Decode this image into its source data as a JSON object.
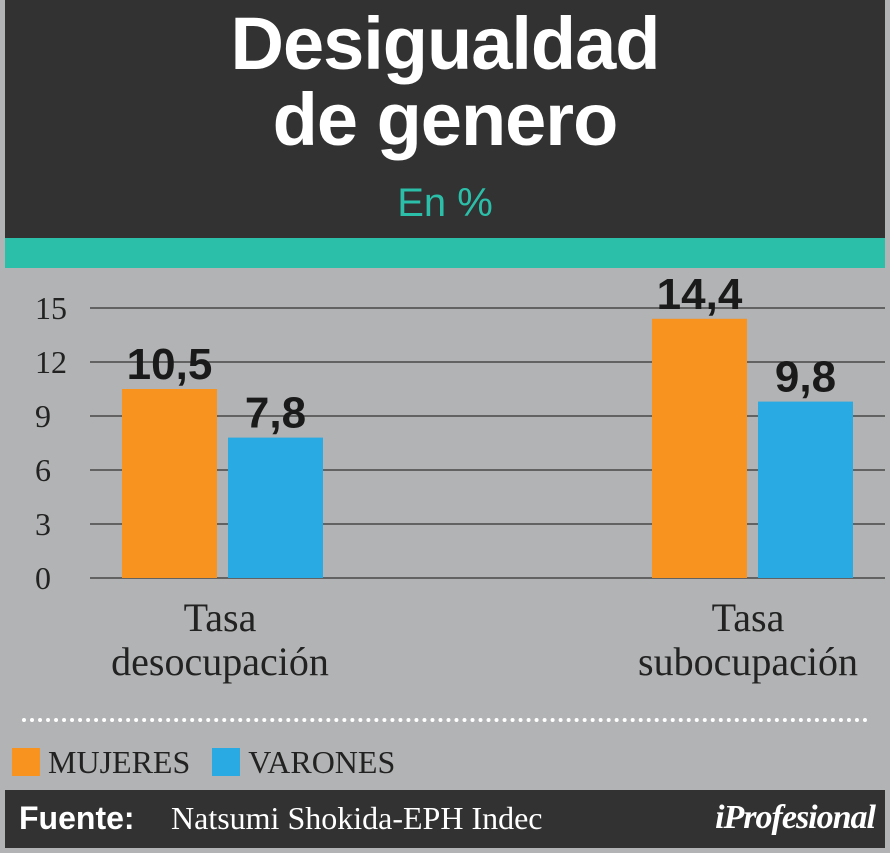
{
  "title_line1": "Desigualdad",
  "title_line2": "de genero",
  "subtitle": "En %",
  "colors": {
    "header_bg": "#323232",
    "accent": "#2bbfa9",
    "plot_bg": "#b2b3b4",
    "mujeres": "#f7931e",
    "varones": "#29aae2"
  },
  "chart_data": {
    "type": "bar",
    "categories": [
      "Tasa\ndesocupación",
      "Tasa\nsubocupación"
    ],
    "series": [
      {
        "name": "MUJERES",
        "values": [
          10.5,
          14.4
        ],
        "labels": [
          "10,5",
          "14,4"
        ],
        "color": "#f7931e"
      },
      {
        "name": "VARONES",
        "values": [
          7.8,
          9.8
        ],
        "labels": [
          "7,8",
          "9,8"
        ],
        "color": "#29aae2"
      }
    ],
    "yticks": [
      0,
      3,
      6,
      9,
      12,
      15
    ],
    "ylim": [
      0,
      15
    ],
    "grid": true,
    "legend_position": "bottom-left"
  },
  "legend": [
    {
      "label": "MUJERES",
      "color": "#f7931e"
    },
    {
      "label": "VARONES",
      "color": "#29aae2"
    }
  ],
  "footer": {
    "source_label": "Fuente:",
    "source_text": "Natsumi Shokida-EPH Indec",
    "brand": "iProfesional"
  }
}
